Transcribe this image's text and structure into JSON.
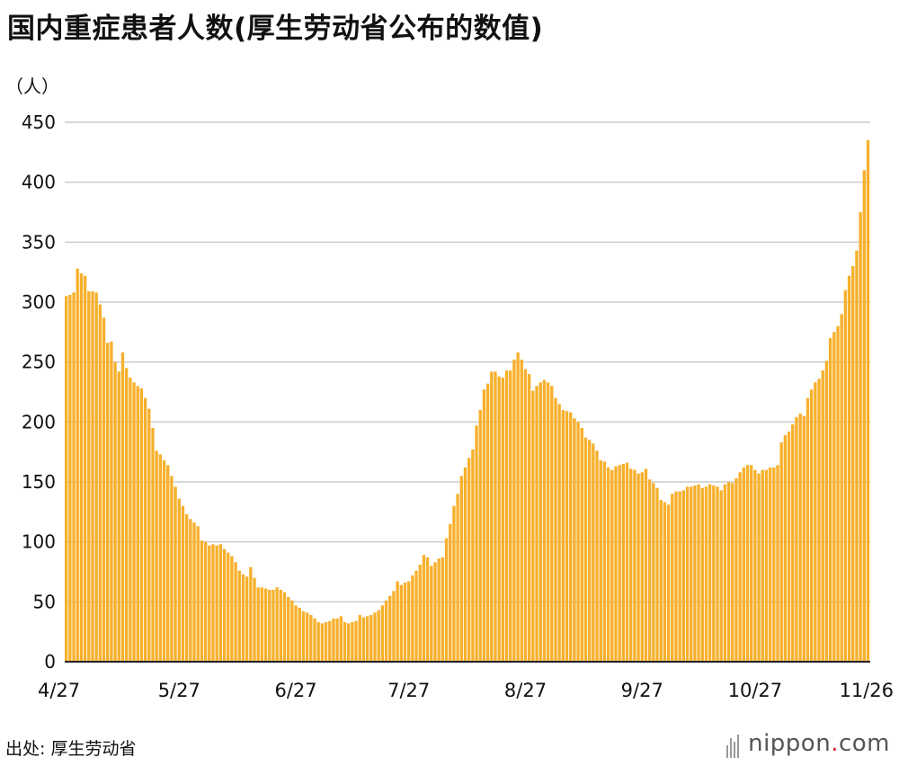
{
  "title": "国内重症患者人数(厚生劳动省公布的数值)",
  "unit": "（人）",
  "source": "出处: 厚生劳动省",
  "brand": {
    "name": "nippon",
    "dot": ".",
    "suffix": "com"
  },
  "colors": {
    "bar": "#F7B02D",
    "bar_edge": "#E9A21F",
    "grid": "#cccccc",
    "axis": "#222222"
  },
  "chart_data": {
    "type": "bar",
    "title": "国内重症患者人数(厚生劳动省公布的数值)",
    "ylabel": "（人）",
    "ylim": [
      0,
      450
    ],
    "yticks": [
      0,
      50,
      100,
      150,
      200,
      250,
      300,
      350,
      400,
      450
    ],
    "x_tick_labels": [
      "4/27",
      "5/27",
      "6/27",
      "7/27",
      "8/27",
      "9/27",
      "10/27",
      "11/26"
    ],
    "x_tick_index": [
      0,
      30,
      61,
      91,
      122,
      153,
      183,
      213
    ],
    "grid": "horizontal",
    "values": [
      305,
      306,
      308,
      328,
      324,
      322,
      309,
      309,
      308,
      298,
      287,
      266,
      267,
      250,
      242,
      258,
      245,
      237,
      233,
      230,
      228,
      220,
      211,
      195,
      176,
      173,
      168,
      164,
      155,
      146,
      136,
      130,
      123,
      119,
      116,
      113,
      101,
      100,
      97,
      98,
      97,
      98,
      94,
      91,
      88,
      83,
      76,
      73,
      71,
      79,
      70,
      62,
      62,
      61,
      60,
      60,
      62,
      60,
      58,
      54,
      51,
      47,
      45,
      42,
      41,
      39,
      36,
      33,
      32,
      33,
      34,
      36,
      36,
      38,
      33,
      32,
      33,
      34,
      39,
      37,
      38,
      39,
      41,
      43,
      47,
      51,
      55,
      59,
      67,
      64,
      66,
      67,
      72,
      76,
      81,
      89,
      87,
      80,
      83,
      86,
      87,
      103,
      115,
      130,
      140,
      155,
      162,
      170,
      177,
      197,
      210,
      227,
      232,
      242,
      242,
      238,
      237,
      243,
      243,
      252,
      258,
      252,
      244,
      240,
      226,
      230,
      233,
      235,
      233,
      230,
      220,
      215,
      210,
      209,
      208,
      203,
      200,
      195,
      187,
      185,
      182,
      176,
      168,
      167,
      162,
      160,
      163,
      164,
      165,
      166,
      161,
      160,
      157,
      158,
      161,
      152,
      149,
      145,
      135,
      133,
      131,
      140,
      142,
      142,
      143,
      146,
      146,
      147,
      148,
      145,
      146,
      148,
      147,
      146,
      143,
      148,
      150,
      149,
      153,
      158,
      162,
      164,
      164,
      160,
      157,
      160,
      160,
      162,
      162,
      164,
      183,
      189,
      192,
      198,
      204,
      207,
      205,
      220,
      227,
      233,
      236,
      243,
      251,
      270,
      275,
      280,
      290,
      310,
      322,
      330,
      343,
      375,
      410,
      435
    ]
  }
}
